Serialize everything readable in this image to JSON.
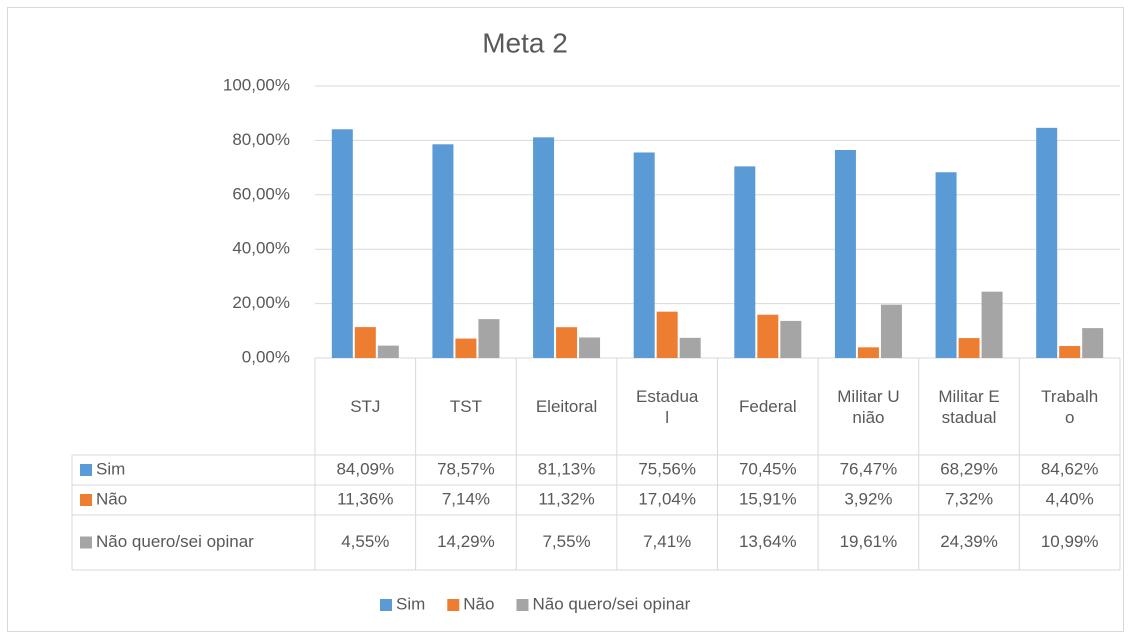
{
  "chart_data": {
    "type": "bar",
    "title": "Meta 2",
    "categories": [
      "STJ",
      "TST",
      "Eleitoral",
      "Estadual",
      "Federal",
      "Militar União",
      "Militar Estadual",
      "Trabalho"
    ],
    "series": [
      {
        "name": "Sim",
        "color": "#5b9bd5",
        "values": [
          84.09,
          78.57,
          81.13,
          75.56,
          70.45,
          76.47,
          68.29,
          84.62
        ],
        "value_labels": [
          "84,09%",
          "78,57%",
          "81,13%",
          "75,56%",
          "70,45%",
          "76,47%",
          "68,29%",
          "84,62%"
        ]
      },
      {
        "name": "Não",
        "color": "#ed7d31",
        "values": [
          11.36,
          7.14,
          11.32,
          17.04,
          15.91,
          3.92,
          7.32,
          4.4
        ],
        "value_labels": [
          "11,36%",
          "7,14%",
          "11,32%",
          "17,04%",
          "15,91%",
          "3,92%",
          "7,32%",
          "4,40%"
        ]
      },
      {
        "name": "Não quero/sei opinar",
        "color": "#a5a5a5",
        "values": [
          4.55,
          14.29,
          7.55,
          7.41,
          13.64,
          19.61,
          24.39,
          10.99
        ],
        "value_labels": [
          "4,55%",
          "14,29%",
          "7,55%",
          "7,41%",
          "13,64%",
          "19,61%",
          "24,39%",
          "10,99%"
        ]
      }
    ],
    "ylim": [
      0,
      100
    ],
    "yticks": [
      {
        "value": 0,
        "label": "0,00%"
      },
      {
        "value": 20,
        "label": "20,00%"
      },
      {
        "value": 40,
        "label": "40,00%"
      },
      {
        "value": 60,
        "label": "60,00%"
      },
      {
        "value": 80,
        "label": "80,00%"
      },
      {
        "value": 100,
        "label": "100,00%"
      }
    ],
    "grid": true,
    "legend": "bottom"
  }
}
